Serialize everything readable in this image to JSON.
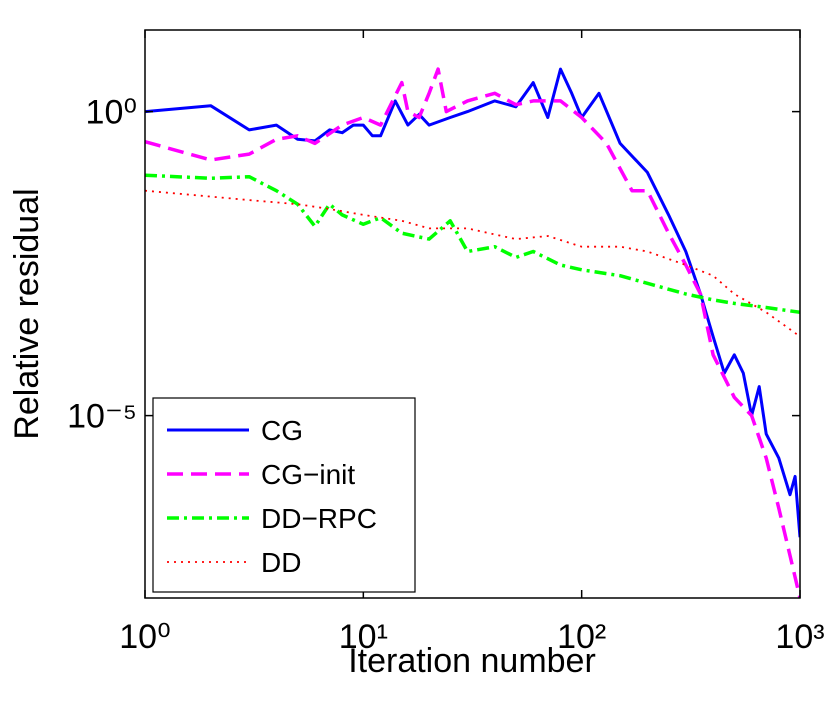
{
  "chart_data": {
    "type": "line",
    "xlabel": "Iteration number",
    "ylabel": "Relative residual",
    "xscale": "log",
    "yscale": "log",
    "xlim": [
      1,
      1000
    ],
    "ylim": [
      1e-08,
      22
    ],
    "xticks": [
      {
        "value": 1,
        "label": "10⁰"
      },
      {
        "value": 10,
        "label": "10¹"
      },
      {
        "value": 100,
        "label": "10²"
      },
      {
        "value": 1000,
        "label": "10³"
      }
    ],
    "yticks": [
      {
        "value": 1e-05,
        "label": "10⁻⁵"
      },
      {
        "value": 1,
        "label": "10⁰"
      }
    ],
    "legend": "lower left",
    "series": [
      {
        "name": "CG",
        "color": "#0000ff",
        "style": "solid",
        "x": [
          1,
          2,
          3,
          4,
          5,
          6,
          7,
          8,
          9,
          10,
          11,
          12,
          14,
          16,
          18,
          20,
          25,
          30,
          40,
          50,
          60,
          70,
          80,
          90,
          100,
          120,
          150,
          200,
          250,
          300,
          350,
          400,
          450,
          500,
          550,
          600,
          650,
          700,
          800,
          900,
          950,
          1000
        ],
        "values": [
          1.0,
          1.25,
          0.5,
          0.6,
          0.35,
          0.33,
          0.5,
          0.45,
          0.6,
          0.6,
          0.4,
          0.4,
          1.5,
          0.6,
          0.9,
          0.6,
          0.8,
          1,
          1.5,
          1.2,
          3,
          0.8,
          5,
          2,
          0.8,
          2,
          0.3,
          0.1,
          0.02,
          0.005,
          0.001,
          0.0002,
          5e-05,
          0.0001,
          5e-05,
          1e-05,
          3e-05,
          5e-06,
          2e-06,
          5e-07,
          1e-06,
          1e-07
        ]
      },
      {
        "name": "CG−init",
        "color": "#ff00ff",
        "style": "dashed",
        "x": [
          1,
          2,
          3,
          4,
          5,
          6,
          8,
          10,
          12,
          15,
          16,
          18,
          20,
          22,
          24,
          30,
          40,
          50,
          60,
          80,
          100,
          130,
          170,
          200,
          250,
          300,
          350,
          400,
          500,
          600,
          700,
          800,
          900,
          1000
        ],
        "values": [
          0.32,
          0.16,
          0.2,
          0.35,
          0.4,
          0.3,
          0.6,
          0.8,
          0.6,
          3,
          1,
          0.8,
          2,
          5,
          1,
          1.5,
          2,
          1.3,
          1.5,
          1.5,
          0.8,
          0.3,
          0.05,
          0.05,
          0.01,
          0.003,
          0.001,
          0.0001,
          2e-05,
          1e-05,
          2e-06,
          3e-07,
          5e-08,
          1e-08
        ]
      },
      {
        "name": "DD−RPC",
        "color": "#00ff00",
        "style": "dashdot",
        "x": [
          1,
          2,
          3,
          4,
          5,
          6,
          7,
          8,
          10,
          12,
          15,
          20,
          25,
          30,
          40,
          50,
          60,
          80,
          100,
          150,
          200,
          300,
          400,
          500,
          700,
          1000
        ],
        "values": [
          0.09,
          0.08,
          0.085,
          0.05,
          0.03,
          0.013,
          0.03,
          0.02,
          0.014,
          0.018,
          0.01,
          0.008,
          0.016,
          0.005,
          0.006,
          0.004,
          0.005,
          0.003,
          0.0025,
          0.002,
          0.0015,
          0.001,
          0.0008,
          0.0007,
          0.0006,
          0.0005
        ]
      },
      {
        "name": "DD",
        "color": "#ff0000",
        "style": "dotted",
        "x": [
          1,
          2,
          3,
          5,
          7,
          10,
          15,
          20,
          30,
          50,
          70,
          100,
          150,
          200,
          300,
          400,
          500,
          700,
          1000
        ],
        "values": [
          0.05,
          0.04,
          0.035,
          0.03,
          0.025,
          0.02,
          0.016,
          0.012,
          0.012,
          0.008,
          0.009,
          0.006,
          0.006,
          0.005,
          0.003,
          0.002,
          0.001,
          0.0005,
          0.0002
        ]
      }
    ]
  }
}
